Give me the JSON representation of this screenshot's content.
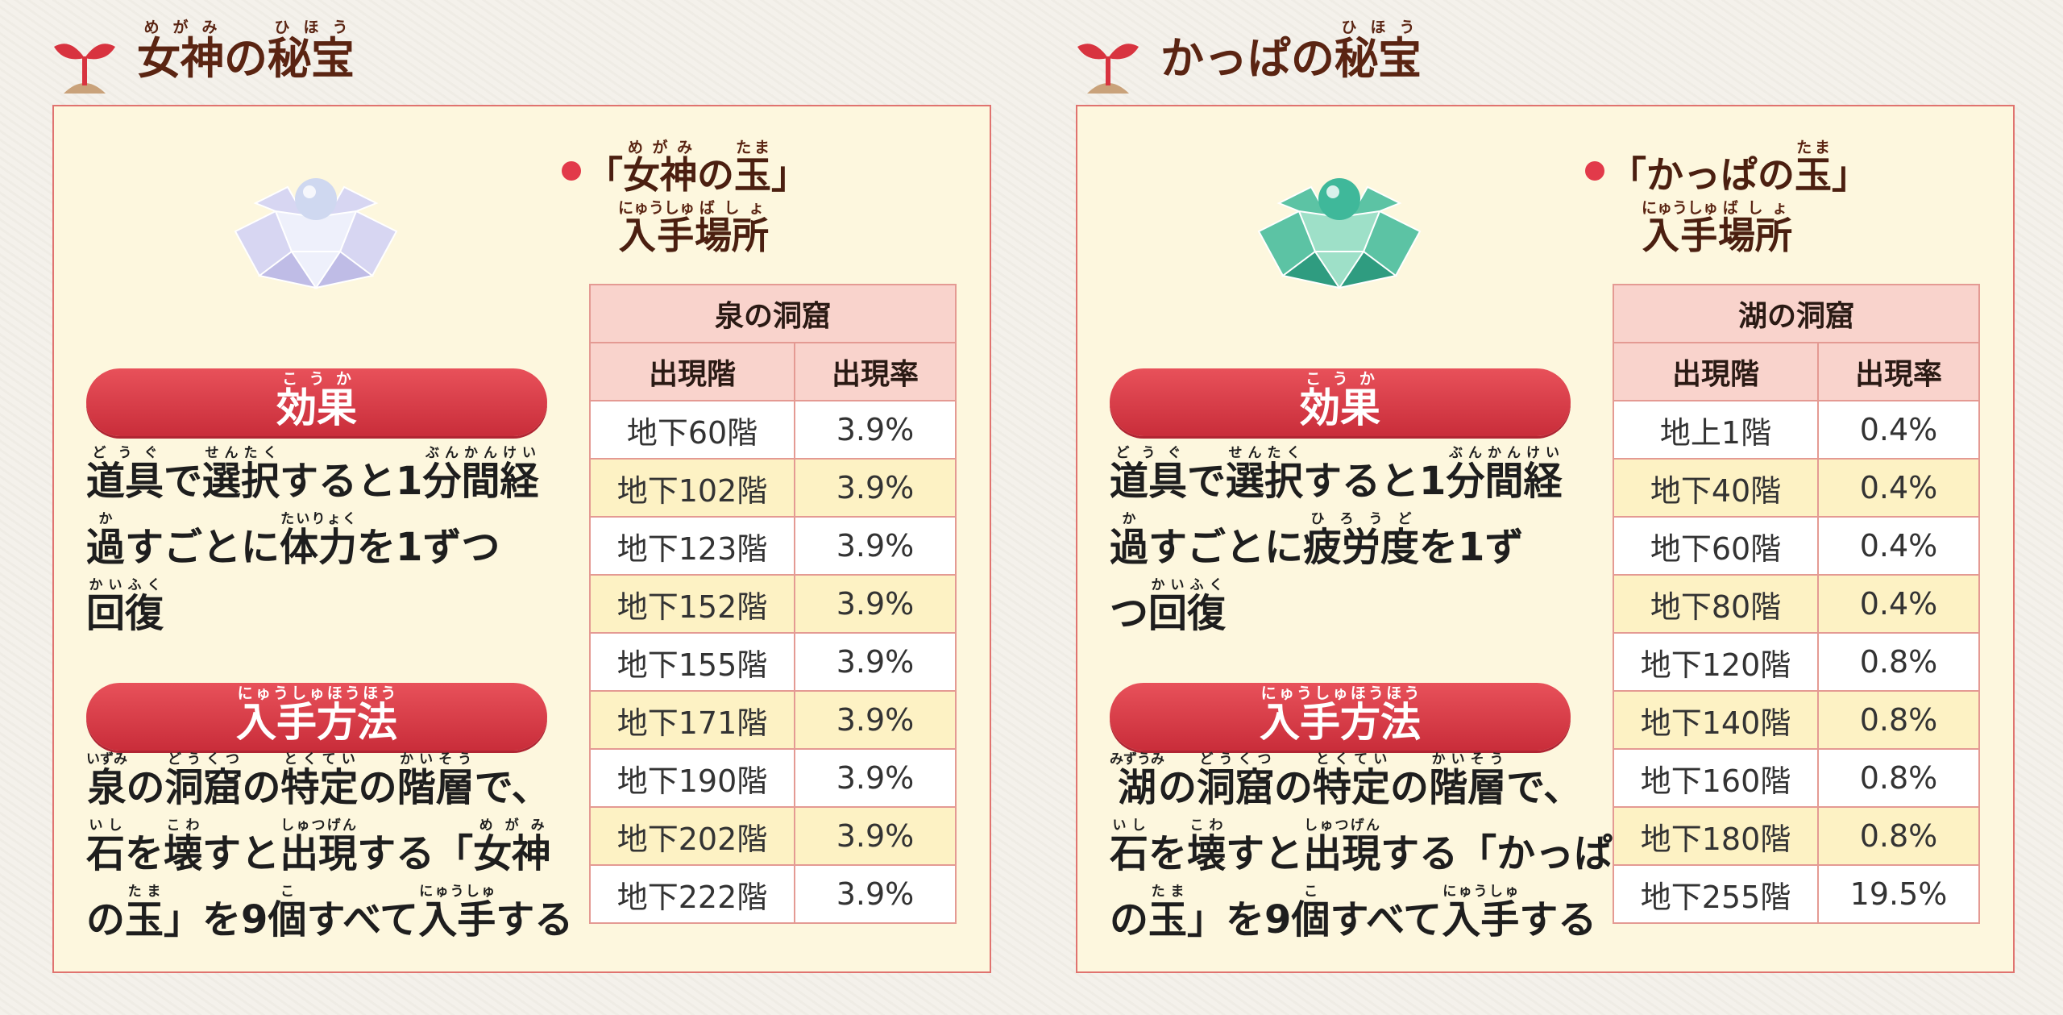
{
  "panels": [
    {
      "title": [
        {
          "text": "女神",
          "ruby": "めがみ"
        },
        {
          "text": "の"
        },
        {
          "text": "秘宝",
          "ruby": "ひほう"
        }
      ],
      "item_heading": [
        {
          "text": "「"
        },
        {
          "text": "女神",
          "ruby": "めがみ"
        },
        {
          "text": "の"
        },
        {
          "text": "玉",
          "ruby": "たま"
        },
        {
          "text": "」"
        }
      ],
      "location_heading": [
        {
          "text": "入手",
          "ruby": "にゅうしゅ"
        },
        {
          "text": "場所",
          "ruby": "ばしょ"
        }
      ],
      "effect_label": [
        {
          "text": "効果",
          "ruby": "こうか"
        }
      ],
      "effect_text": [
        [
          {
            "text": "道具",
            "ruby": "どうぐ"
          },
          {
            "text": "で"
          },
          {
            "text": "選択",
            "ruby": "せんたく"
          },
          {
            "text": "すると1"
          },
          {
            "text": "分間経",
            "ruby": "ぶんかんけい"
          }
        ],
        [
          {
            "text": "過",
            "ruby": "か"
          },
          {
            "text": "すごとに"
          },
          {
            "text": "体力",
            "ruby": "たいりょく"
          },
          {
            "text": "を1ずつ"
          }
        ],
        [
          {
            "text": "回復",
            "ruby": "かいふく"
          }
        ]
      ],
      "method_label": [
        {
          "text": "入手方法",
          "ruby": "にゅうしゅほうほう"
        }
      ],
      "method_text": [
        [
          {
            "text": "泉",
            "ruby": "いずみ"
          },
          {
            "text": "の"
          },
          {
            "text": "洞窟",
            "ruby": "どうくつ"
          },
          {
            "text": "の"
          },
          {
            "text": "特定",
            "ruby": "とくてい"
          },
          {
            "text": "の"
          },
          {
            "text": "階層",
            "ruby": "かいそう"
          },
          {
            "text": "で、"
          }
        ],
        [
          {
            "text": "石",
            "ruby": "いし"
          },
          {
            "text": "を"
          },
          {
            "text": "壊",
            "ruby": "こわ"
          },
          {
            "text": "すと"
          },
          {
            "text": "出現",
            "ruby": "しゅつげん"
          },
          {
            "text": "する「"
          },
          {
            "text": "女神",
            "ruby": "めがみ"
          }
        ],
        [
          {
            "text": "の"
          },
          {
            "text": "玉",
            "ruby": "たま"
          },
          {
            "text": "」を9"
          },
          {
            "text": "個",
            "ruby": "こ"
          },
          {
            "text": "すべて"
          },
          {
            "text": "入手",
            "ruby": "にゅうしゅ"
          },
          {
            "text": "する"
          }
        ]
      ],
      "table": {
        "cave": "泉の洞窟",
        "headers": [
          "出現階",
          "出現率"
        ],
        "rows": [
          [
            "地下60階",
            "3.9%"
          ],
          [
            "地下102階",
            "3.9%"
          ],
          [
            "地下123階",
            "3.9%"
          ],
          [
            "地下152階",
            "3.9%"
          ],
          [
            "地下155階",
            "3.9%"
          ],
          [
            "地下171階",
            "3.9%"
          ],
          [
            "地下190階",
            "3.9%"
          ],
          [
            "地下202階",
            "3.9%"
          ],
          [
            "地下222階",
            "3.9%"
          ]
        ]
      }
    },
    {
      "title": [
        {
          "text": "かっぱの"
        },
        {
          "text": "秘宝",
          "ruby": "ひほう"
        }
      ],
      "item_heading": [
        {
          "text": "「かっぱの"
        },
        {
          "text": "玉",
          "ruby": "たま"
        },
        {
          "text": "」"
        }
      ],
      "location_heading": [
        {
          "text": "入手",
          "ruby": "にゅうしゅ"
        },
        {
          "text": "場所",
          "ruby": "ばしょ"
        }
      ],
      "effect_label": [
        {
          "text": "効果",
          "ruby": "こうか"
        }
      ],
      "effect_text": [
        [
          {
            "text": "道具",
            "ruby": "どうぐ"
          },
          {
            "text": "で"
          },
          {
            "text": "選択",
            "ruby": "せんたく"
          },
          {
            "text": "すると1"
          },
          {
            "text": "分間経",
            "ruby": "ぶんかんけい"
          }
        ],
        [
          {
            "text": "過",
            "ruby": "か"
          },
          {
            "text": "すごとに"
          },
          {
            "text": "疲労度",
            "ruby": "ひろうど"
          },
          {
            "text": "を1ず"
          }
        ],
        [
          {
            "text": "つ"
          },
          {
            "text": "回復",
            "ruby": "かいふく"
          }
        ]
      ],
      "method_label": [
        {
          "text": "入手方法",
          "ruby": "にゅうしゅほうほう"
        }
      ],
      "method_text": [
        [
          {
            "text": "湖",
            "ruby": "みずうみ"
          },
          {
            "text": "の"
          },
          {
            "text": "洞窟",
            "ruby": "どうくつ"
          },
          {
            "text": "の"
          },
          {
            "text": "特定",
            "ruby": "とくてい"
          },
          {
            "text": "の"
          },
          {
            "text": "階層",
            "ruby": "かいそう"
          },
          {
            "text": "で、"
          }
        ],
        [
          {
            "text": "石",
            "ruby": "いし"
          },
          {
            "text": "を"
          },
          {
            "text": "壊",
            "ruby": "こわ"
          },
          {
            "text": "すと"
          },
          {
            "text": "出現",
            "ruby": "しゅつげん"
          },
          {
            "text": "する「かっぱ"
          }
        ],
        [
          {
            "text": "の"
          },
          {
            "text": "玉",
            "ruby": "たま"
          },
          {
            "text": "」を9"
          },
          {
            "text": "個",
            "ruby": "こ"
          },
          {
            "text": "すべて"
          },
          {
            "text": "入手",
            "ruby": "にゅうしゅ"
          },
          {
            "text": "する"
          }
        ]
      ],
      "table": {
        "cave": "湖の洞窟",
        "headers": [
          "出現階",
          "出現率"
        ],
        "rows": [
          [
            "地上1階",
            "0.4%"
          ],
          [
            "地下40階",
            "0.4%"
          ],
          [
            "地下60階",
            "0.4%"
          ],
          [
            "地下80階",
            "0.4%"
          ],
          [
            "地下120階",
            "0.8%"
          ],
          [
            "地下140階",
            "0.8%"
          ],
          [
            "地下160階",
            "0.8%"
          ],
          [
            "地下180階",
            "0.8%"
          ],
          [
            "地下255階",
            "19.5%"
          ]
        ]
      }
    }
  ]
}
